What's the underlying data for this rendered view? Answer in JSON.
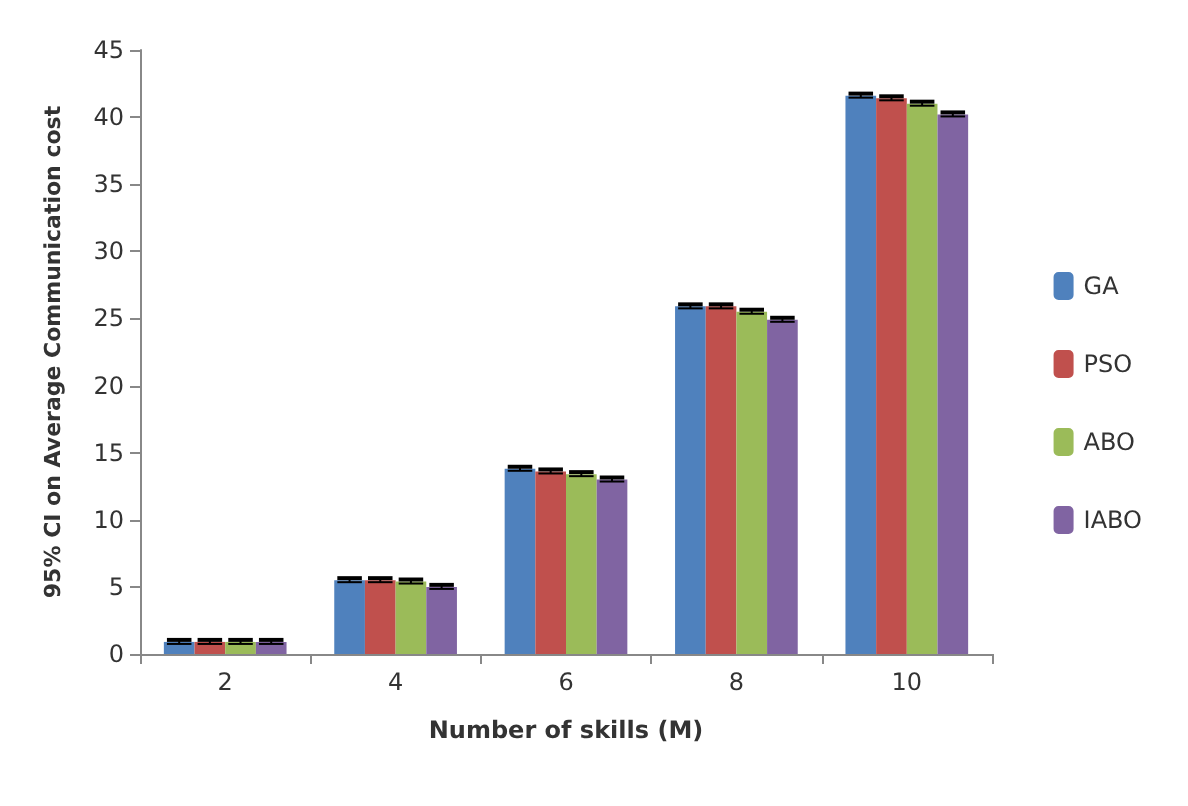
{
  "chart_data": {
    "type": "bar",
    "xlabel": "Number of skills (M)",
    "ylabel": "95% CI on Average Communication cost",
    "categories": [
      "2",
      "4",
      "6",
      "8",
      "10"
    ],
    "series": [
      {
        "name": "GA",
        "color": "#4f81bd",
        "values": [
          0.9,
          5.5,
          13.8,
          25.9,
          41.6
        ],
        "errors": [
          0.15,
          0.15,
          0.15,
          0.15,
          0.15
        ]
      },
      {
        "name": "PSO",
        "color": "#c0504d",
        "values": [
          0.9,
          5.5,
          13.6,
          25.9,
          41.4
        ],
        "errors": [
          0.15,
          0.15,
          0.15,
          0.15,
          0.15
        ]
      },
      {
        "name": "ABO",
        "color": "#9bbb59",
        "values": [
          0.9,
          5.4,
          13.4,
          25.5,
          41.0
        ],
        "errors": [
          0.15,
          0.15,
          0.15,
          0.15,
          0.15
        ]
      },
      {
        "name": "IABO",
        "color": "#8064a2",
        "values": [
          0.9,
          5.0,
          13.0,
          24.9,
          40.2
        ],
        "errors": [
          0.15,
          0.15,
          0.15,
          0.15,
          0.15
        ]
      }
    ],
    "ylim": [
      0,
      45
    ],
    "yticks": [
      0,
      5,
      10,
      15,
      20,
      25,
      30,
      35,
      40,
      45
    ],
    "grid": false,
    "legend": "right"
  }
}
